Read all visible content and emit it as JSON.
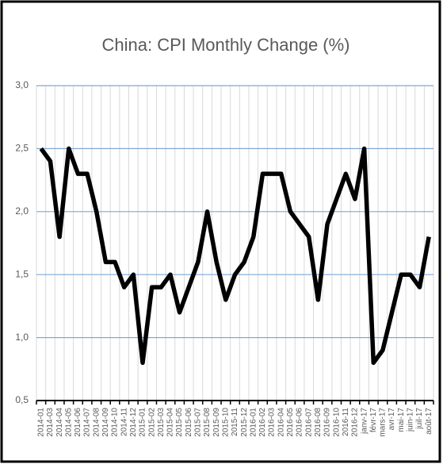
{
  "chart_data": {
    "type": "line",
    "title": "China: CPI Monthly Change (%)",
    "categories": [
      "2014-01",
      "2014-03",
      "2014-04",
      "2014-05",
      "2014-06",
      "2014-07",
      "2014-08",
      "2014-09",
      "2014-10",
      "2014-11",
      "2014-12",
      "2015-01",
      "2015-02",
      "2015-03",
      "2015-04",
      "2015-05",
      "2015-06",
      "2015-07",
      "2015-08",
      "2015-09",
      "2015-10",
      "2015-11",
      "2015-12",
      "2016-01",
      "2016-02",
      "2016-03",
      "2016-04",
      "2016-05",
      "2016-06",
      "2016-07",
      "2016-08",
      "2016-09",
      "2016-10",
      "2016-11",
      "2016-12",
      "janv-17",
      "févr-17",
      "mars-17",
      "avr-17",
      "mai-17",
      "juin-17",
      "juil-17",
      "août-17"
    ],
    "values": [
      2.5,
      2.4,
      1.8,
      2.5,
      2.3,
      2.3,
      2.0,
      1.6,
      1.6,
      1.4,
      1.5,
      0.8,
      1.4,
      1.4,
      1.5,
      1.2,
      1.4,
      1.6,
      2.0,
      1.6,
      1.3,
      1.5,
      1.6,
      1.8,
      2.3,
      2.3,
      2.3,
      2.0,
      1.9,
      1.8,
      1.3,
      1.9,
      2.1,
      2.3,
      2.1,
      2.5,
      0.8,
      0.9,
      1.2,
      1.5,
      1.5,
      1.4,
      1.8
    ],
    "color": "#000000",
    "ylim": [
      0.5,
      3.0
    ],
    "yticks": [
      {
        "value": 0.5,
        "label": "0,5"
      },
      {
        "value": 1.0,
        "label": "1,0"
      },
      {
        "value": 1.5,
        "label": "1,5"
      },
      {
        "value": 2.0,
        "label": "2,0"
      },
      {
        "value": 2.5,
        "label": "2,5"
      },
      {
        "value": 3.0,
        "label": "3,0"
      }
    ],
    "grid": true
  }
}
